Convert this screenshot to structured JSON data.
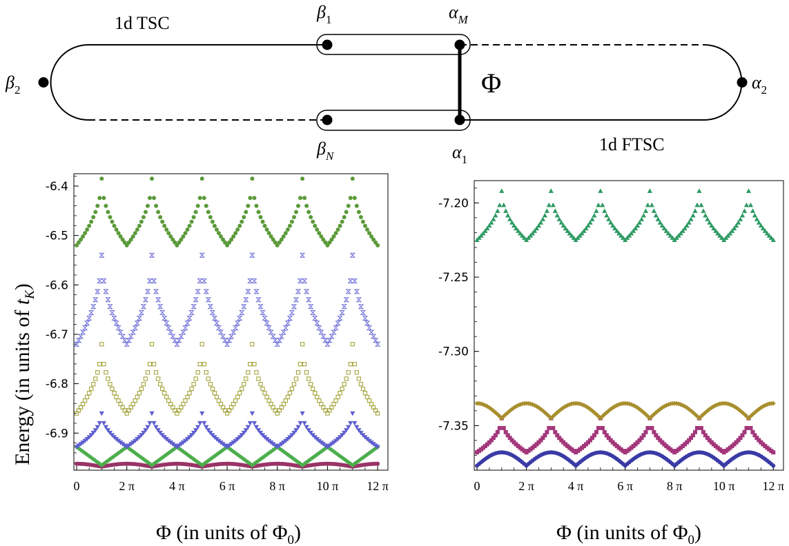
{
  "diagram": {
    "label_tsc": "1d TSC",
    "label_ftsc": "1d FTSC",
    "label_phi": "Φ",
    "nodes": [
      {
        "id": "beta2",
        "base": "β",
        "sub": "2"
      },
      {
        "id": "beta1",
        "base": "β",
        "sub": "1"
      },
      {
        "id": "betaN",
        "base": "β",
        "sub": "N"
      },
      {
        "id": "alphaM",
        "base": "α",
        "sub": "M"
      },
      {
        "id": "alpha1",
        "base": "α",
        "sub": "1"
      },
      {
        "id": "alpha2",
        "base": "α",
        "sub": "2"
      }
    ]
  },
  "axis_text": {
    "ylabel_main": "Energy  (in units of ",
    "ylabel_sym": "t",
    "ylabel_sub": "K",
    "ylabel_close": ")",
    "xlabel_main": "Φ  (in units of Φ",
    "xlabel_sub": "0",
    "xlabel_close": ")"
  },
  "chart_data": [
    {
      "type": "scatter",
      "panel": "left",
      "xlabel": "Φ  (in units of Φ0)",
      "ylabel": "Energy  (in units of tK)",
      "xlim": [
        0,
        12.3
      ],
      "ylim": [
        -6.975,
        -6.375
      ],
      "x_unit": "π",
      "xticks": [
        0,
        2,
        4,
        6,
        8,
        10,
        12
      ],
      "xtick_labels": [
        "0",
        "2 π",
        "4 π",
        "6 π",
        "8 π",
        "10 π",
        "12 π"
      ],
      "yticks": [
        -6.4,
        -6.5,
        -6.6,
        -6.7,
        -6.8,
        -6.9
      ],
      "ytick_labels": [
        "-6.4",
        "-6.5",
        "-6.6",
        "-6.7",
        "-6.8",
        "-6.9"
      ],
      "period": 2,
      "samples_per_period": 24,
      "series": [
        {
          "marker": "circle",
          "color": "#993366",
          "min": -6.968,
          "max": -6.962,
          "shape": "bump",
          "phase": 1
        },
        {
          "marker": "diamond",
          "color": "#4cae4c",
          "min": -6.965,
          "max": -6.928,
          "shape": "rise",
          "phase": 0
        },
        {
          "marker": "triangle-down",
          "color": "#5e5ecf",
          "min": -6.928,
          "max": -6.86,
          "shape": "cone",
          "phase": 1
        },
        {
          "marker": "square-open",
          "color": "#a3a33a",
          "min": -6.86,
          "max": -6.72,
          "shape": "cone",
          "phase": 1
        },
        {
          "marker": "bowtie",
          "color": "#7070d8",
          "min": -6.72,
          "max": -6.54,
          "shape": "cone",
          "phase": 1
        },
        {
          "marker": "circle",
          "color": "#5b9a3a",
          "min": -6.52,
          "max": -6.385,
          "shape": "cone",
          "phase": 1
        }
      ]
    },
    {
      "type": "scatter",
      "panel": "right",
      "xlabel": "Φ  (in units of Φ0)",
      "xlim": [
        0,
        12.3
      ],
      "ylim": [
        -7.38,
        -7.185
      ],
      "x_unit": "π",
      "xticks": [
        0,
        2,
        4,
        6,
        8,
        10,
        12
      ],
      "xtick_labels": [
        "0",
        "2 π",
        "4 π",
        "6 π",
        "8 π",
        "10 π",
        "12 π"
      ],
      "yticks": [
        -7.2,
        -7.25,
        -7.3,
        -7.35
      ],
      "ytick_labels": [
        "-7.20",
        "-7.25",
        "-7.30",
        "-7.35"
      ],
      "period": 2,
      "samples_per_period": 24,
      "series": [
        {
          "marker": "circle",
          "color": "#3a3aa6",
          "min": -7.377,
          "max": -7.368,
          "shape": "bump",
          "phase": 0
        },
        {
          "marker": "square",
          "color": "#a3367a",
          "min": -7.368,
          "max": -7.345,
          "shape": "cone",
          "phase": 1
        },
        {
          "marker": "diamond",
          "color": "#a88f2e",
          "min": -7.345,
          "max": -7.335,
          "shape": "bump",
          "phase": 1
        },
        {
          "marker": "triangle-up",
          "color": "#2e9a63",
          "min": -7.225,
          "max": -7.192,
          "shape": "cone",
          "phase": 1
        }
      ]
    }
  ]
}
